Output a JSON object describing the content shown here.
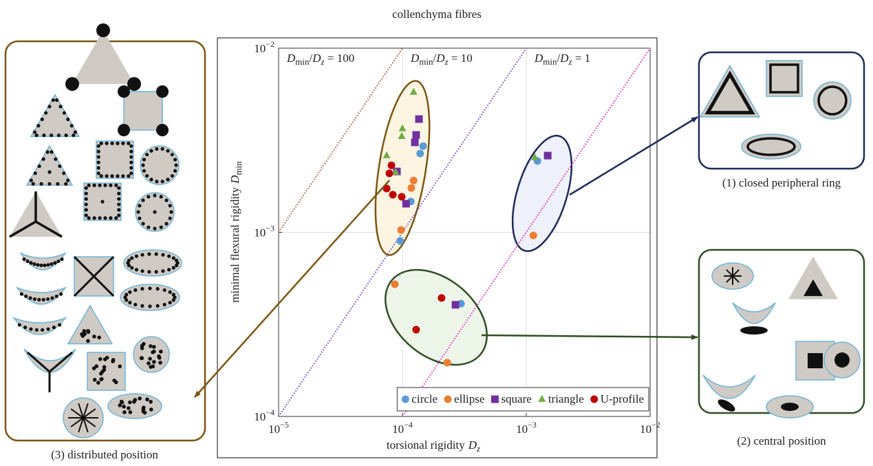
{
  "chart_data": {
    "type": "scatter",
    "title": "collenchyma fibres",
    "xlabel": "torsional rigidity",
    "xlabel_symbol": "D",
    "xlabel_subscript": "z",
    "ylabel": "minimal flexural rigidity",
    "ylabel_symbol": "D",
    "ylabel_subscript": "min",
    "xscale": "log",
    "yscale": "log",
    "xlim": [
      1e-05,
      0.01
    ],
    "ylim": [
      0.0001,
      0.01
    ],
    "xticks": [
      {
        "value": 1e-05,
        "label": "10−5"
      },
      {
        "value": 0.0001,
        "label": "10−4"
      },
      {
        "value": 0.001,
        "label": "10−3"
      },
      {
        "value": 0.01,
        "label": "10−2"
      }
    ],
    "yticks": [
      {
        "value": 0.0001,
        "label": "10−4"
      },
      {
        "value": 0.001,
        "label": "10−3"
      },
      {
        "value": 0.01,
        "label": "10−2"
      }
    ],
    "grid": true,
    "legend_loc": "lower right",
    "ratio_symbol": [
      "D",
      "min",
      "/",
      "D",
      "z",
      " = "
    ],
    "ratio_lines": [
      {
        "ratio": 100,
        "color": "#a0522d"
      },
      {
        "ratio": 10,
        "color": "#6a3fc0"
      },
      {
        "ratio": 1,
        "color": "#e020c0"
      }
    ],
    "series": [
      {
        "name": "circle",
        "marker": "circle",
        "color": "#5b9bd5",
        "x": [
          0.000147,
          0.000139,
          0.000117,
          9.6e-05,
          0.000297,
          0.00123
        ],
        "values": [
          0.00294,
          0.00268,
          0.00147,
          0.000898,
          0.00041,
          0.00244
        ]
      },
      {
        "name": "ellipse",
        "marker": "circle",
        "color": "#ed7d31",
        "x": [
          0.000123,
          0.000118,
          9.75e-05,
          8.68e-05,
          0.00023,
          0.00114
        ],
        "values": [
          0.00191,
          0.00174,
          0.00103,
          0.000522,
          0.000196,
          0.000962
        ]
      },
      {
        "name": "square",
        "marker": "square",
        "color": "#7030a0",
        "x": [
          0.000136,
          0.000129,
          0.000126,
          9.03e-05,
          0.000107,
          0.000268,
          0.00149
        ],
        "values": [
          0.00412,
          0.00338,
          0.00308,
          0.00214,
          0.00143,
          0.000404,
          0.00261
        ]
      },
      {
        "name": "triangle",
        "marker": "triangle",
        "color": "#70ad47",
        "x": [
          0.000123,
          0.0001,
          9.87e-05,
          7.45e-05,
          8.8e-05,
          0.00117
        ],
        "values": [
          0.00577,
          0.00366,
          0.00332,
          0.00261,
          0.00212,
          0.00255
        ]
      },
      {
        "name": "U-profile",
        "marker": "circle",
        "color": "#c00000",
        "x": [
          8.15e-05,
          7.84e-05,
          7.45e-05,
          8.36e-05,
          9.87e-05,
          0.000207,
          0.000129
        ],
        "values": [
          0.00231,
          0.00209,
          0.00173,
          0.0016,
          0.00156,
          0.00044,
          0.000296
        ]
      }
    ]
  },
  "panels": [
    {
      "label": "(1) closed peripheral ring"
    },
    {
      "label": "(2) central position"
    },
    {
      "label": "(3) distributed position"
    }
  ]
}
